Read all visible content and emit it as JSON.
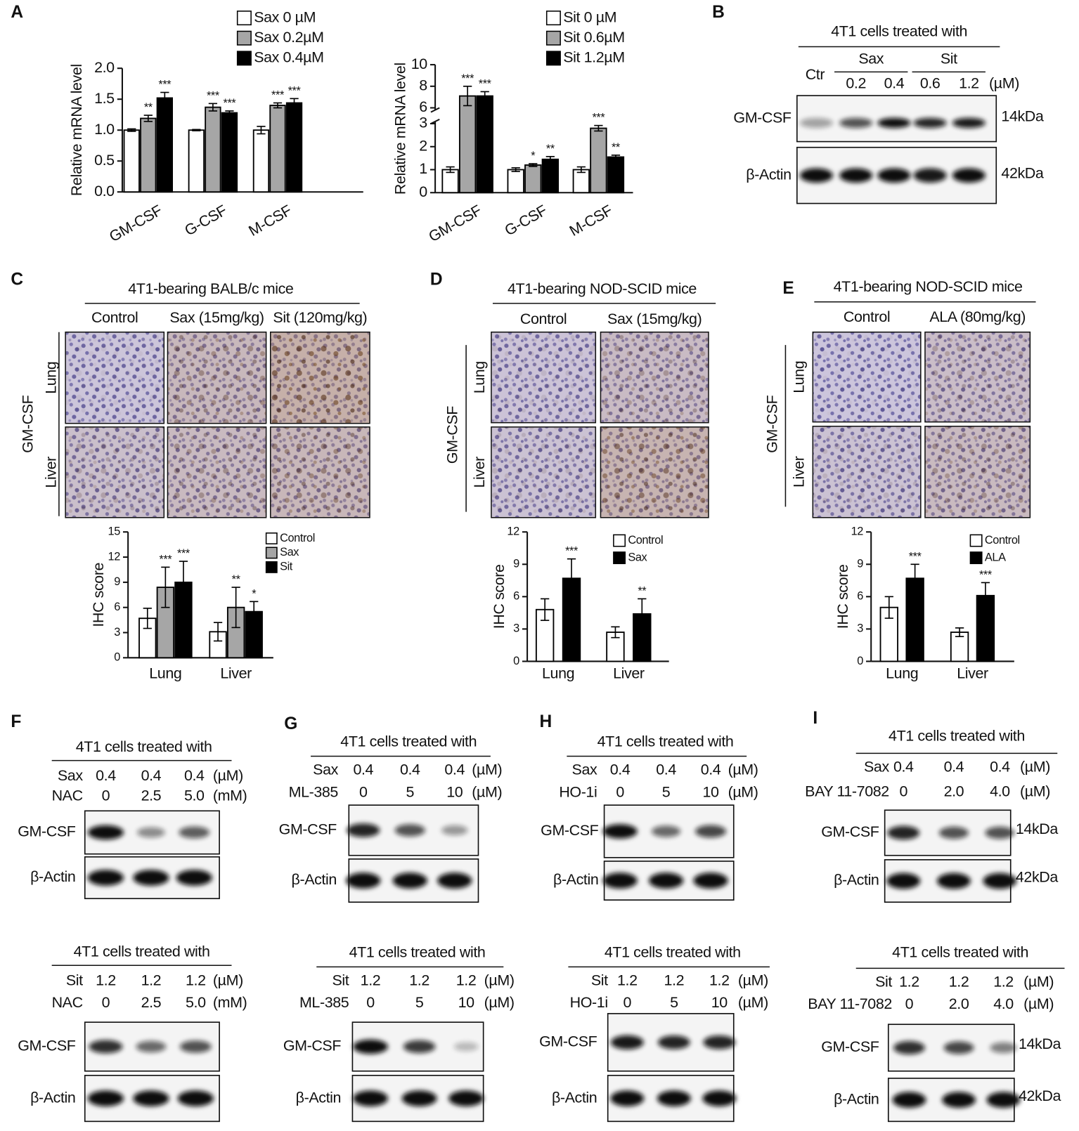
{
  "panel_labels": [
    "A",
    "B",
    "C",
    "D",
    "E",
    "F",
    "G",
    "H",
    "I"
  ],
  "chart_data": [
    {
      "type": "bar",
      "y_label": "Relative mRNA level",
      "categories": [
        "GM-CSF",
        "G-CSF",
        "M-CSF"
      ],
      "series": [
        {
          "name": "Sax 0 µM",
          "color": "#ffffff",
          "values": [
            1.0,
            1.0,
            1.0
          ],
          "errors": [
            0.02,
            0.01,
            0.06
          ]
        },
        {
          "name": "Sax 0.2µM",
          "color": "#a6a6a6",
          "values": [
            1.19,
            1.37,
            1.4
          ],
          "errors": [
            0.05,
            0.06,
            0.04
          ],
          "annotations": [
            "**",
            "***",
            "***"
          ]
        },
        {
          "name": "Sax 0.4µM",
          "color": "#000000",
          "values": [
            1.52,
            1.28,
            1.44
          ],
          "errors": [
            0.09,
            0.03,
            0.07
          ],
          "annotations": [
            "***",
            "***",
            "***"
          ]
        }
      ],
      "ylim": [
        0,
        2
      ],
      "yticks": [
        {
          "value": 0,
          "label": "0.0"
        },
        0.5,
        {
          "value": 1,
          "label": "1.0"
        },
        1.5,
        {
          "value": 2,
          "label": "2.0"
        }
      ]
    },
    {
      "type": "bar",
      "y_label": "Relative mRNA level",
      "categories": [
        "GM-CSF",
        "G-CSF",
        "M-CSF"
      ],
      "series": [
        {
          "name": "Sit 0 µM",
          "color": "#ffffff",
          "values": [
            1.0,
            1.0,
            1.0
          ],
          "errors": [
            0.12,
            0.08,
            0.12
          ]
        },
        {
          "name": "Sit 0.6µM",
          "color": "#a6a6a6",
          "values": [
            7.1,
            1.2,
            2.8
          ],
          "errors": [
            0.9,
            0.06,
            0.12
          ],
          "annotations": [
            "***",
            "*",
            "***"
          ]
        },
        {
          "name": "Sit 1.2µM",
          "color": "#000000",
          "values": [
            7.1,
            1.45,
            1.55
          ],
          "errors": [
            0.4,
            0.12,
            0.08
          ],
          "annotations": [
            "***",
            "**",
            "**"
          ]
        }
      ],
      "ylim": [
        0,
        10
      ],
      "axis_break": [
        3,
        6
      ],
      "yticks": [
        0,
        1,
        2,
        3,
        6,
        8,
        10
      ]
    },
    {
      "type": "bar",
      "y_label": "IHC score",
      "categories": [
        "Lung",
        "Liver"
      ],
      "series": [
        {
          "name": "Control",
          "color": "#ffffff",
          "values": [
            4.7,
            3.1
          ],
          "errors": [
            1.2,
            1.1
          ]
        },
        {
          "name": "Sax",
          "color": "#a6a6a6",
          "values": [
            8.4,
            6.0
          ],
          "errors": [
            2.4,
            2.4
          ],
          "annotations": [
            "***",
            "**"
          ]
        },
        {
          "name": "Sit",
          "color": "#000000",
          "values": [
            9.0,
            5.5
          ],
          "errors": [
            2.5,
            1.2
          ],
          "annotations": [
            "***",
            "*"
          ]
        }
      ],
      "ylim": [
        0,
        15
      ],
      "yticks": [
        0,
        3,
        6,
        9,
        12,
        15
      ]
    },
    {
      "type": "bar",
      "y_label": "IHC score",
      "categories": [
        "Lung",
        "Liver"
      ],
      "series": [
        {
          "name": "Control",
          "color": "#ffffff",
          "values": [
            4.8,
            2.7
          ],
          "errors": [
            1.0,
            0.5
          ]
        },
        {
          "name": "Sax",
          "color": "#000000",
          "values": [
            7.7,
            4.4
          ],
          "errors": [
            1.8,
            1.4
          ],
          "annotations": [
            "***",
            "**"
          ]
        }
      ],
      "ylim": [
        0,
        12
      ],
      "yticks": [
        0,
        3,
        6,
        9,
        12
      ]
    },
    {
      "type": "bar",
      "y_label": "IHC score",
      "categories": [
        "Lung",
        "Liver"
      ],
      "series": [
        {
          "name": "Control",
          "color": "#ffffff",
          "values": [
            5.0,
            2.7
          ],
          "errors": [
            1.0,
            0.4
          ]
        },
        {
          "name": "ALA",
          "color": "#000000",
          "values": [
            7.7,
            6.1
          ],
          "errors": [
            1.3,
            1.2
          ],
          "annotations": [
            "***",
            "***"
          ]
        }
      ],
      "ylim": [
        0,
        12
      ],
      "yticks": [
        0,
        3,
        6,
        9,
        12
      ]
    }
  ],
  "ihc": [
    {
      "title": "4T1-bearing BALB/c mice",
      "stain": "GM-CSF",
      "rows": [
        "Lung",
        "Liver"
      ],
      "columns": [
        "Control",
        "Sax (15mg/kg)",
        "Sit (120mg/kg)"
      ]
    },
    {
      "title": "4T1-bearing NOD-SCID mice",
      "stain": "GM-CSF",
      "rows": [
        "Lung",
        "Liver"
      ],
      "columns": [
        "Control",
        "Sax (15mg/kg)"
      ]
    },
    {
      "title": "4T1-bearing NOD-SCID mice",
      "stain": "GM-CSF",
      "rows": [
        "Lung",
        "Liver"
      ],
      "columns": [
        "Control",
        "ALA (80mg/kg)"
      ]
    }
  ],
  "blots": [
    {
      "header": "4T1 cells treated with",
      "control": "Ctr",
      "groups": [
        {
          "label": "Sax",
          "doses": [
            "0.2",
            "0.4"
          ]
        },
        {
          "label": "Sit",
          "doses": [
            "0.6",
            "1.2"
          ]
        }
      ],
      "unit": "(µM)",
      "rows": [
        {
          "label": "GM-CSF",
          "size": "14kDa"
        },
        {
          "label": "β-Actin",
          "size": "42kDa"
        }
      ]
    },
    {
      "header": "4T1 cells treated with",
      "conditions": [
        {
          "label": "Sax",
          "values": [
            "0.4",
            "0.4",
            "0.4"
          ],
          "unit": "(µM)"
        },
        {
          "label": "NAC",
          "values": [
            "0",
            "2.5",
            "5.0"
          ],
          "unit": "(mM)"
        }
      ],
      "rows": [
        {
          "label": "GM-CSF"
        },
        {
          "label": "β-Actin"
        }
      ]
    },
    {
      "header": "4T1 cells treated with",
      "conditions": [
        {
          "label": "Sit",
          "values": [
            "1.2",
            "1.2",
            "1.2"
          ],
          "unit": "(µM)"
        },
        {
          "label": "NAC",
          "values": [
            "0",
            "2.5",
            "5.0"
          ],
          "unit": "(mM)"
        }
      ],
      "rows": [
        {
          "label": "GM-CSF"
        },
        {
          "label": "β-Actin"
        }
      ]
    },
    {
      "header": "4T1 cells treated with",
      "conditions": [
        {
          "label": "Sax",
          "values": [
            "0.4",
            "0.4",
            "0.4"
          ],
          "unit": "(µM)"
        },
        {
          "label": "ML-385",
          "values": [
            "0",
            "5",
            "10"
          ],
          "unit": "(µM)"
        }
      ],
      "rows": [
        {
          "label": "GM-CSF"
        },
        {
          "label": "β-Actin"
        }
      ]
    },
    {
      "header": "4T1 cells treated with",
      "conditions": [
        {
          "label": "Sit",
          "values": [
            "1.2",
            "1.2",
            "1.2"
          ],
          "unit": "(µM)"
        },
        {
          "label": "ML-385",
          "values": [
            "0",
            "5",
            "10"
          ],
          "unit": "(µM)"
        }
      ],
      "rows": [
        {
          "label": "GM-CSF"
        },
        {
          "label": "β-Actin"
        }
      ]
    },
    {
      "header": "4T1 cells treated with",
      "conditions": [
        {
          "label": "Sax",
          "values": [
            "0.4",
            "0.4",
            "0.4"
          ],
          "unit": "(µM)"
        },
        {
          "label": "HO-1i",
          "values": [
            "0",
            "5",
            "10"
          ],
          "unit": "(µM)"
        }
      ],
      "rows": [
        {
          "label": "GM-CSF"
        },
        {
          "label": "β-Actin"
        }
      ]
    },
    {
      "header": "4T1 cells treated with",
      "conditions": [
        {
          "label": "Sit",
          "values": [
            "1.2",
            "1.2",
            "1.2"
          ],
          "unit": "(µM)"
        },
        {
          "label": "HO-1i",
          "values": [
            "0",
            "5",
            "10"
          ],
          "unit": "(µM)"
        }
      ],
      "rows": [
        {
          "label": "GM-CSF"
        },
        {
          "label": "β-Actin"
        }
      ]
    },
    {
      "header": "4T1 cells treated with",
      "conditions": [
        {
          "label": "Sax",
          "values": [
            "0.4",
            "0.4",
            "0.4"
          ],
          "unit": "(µM)"
        },
        {
          "label": "BAY 11-7082",
          "values": [
            "0",
            "2.0",
            "4.0"
          ],
          "unit": "(µM)"
        }
      ],
      "rows": [
        {
          "label": "GM-CSF",
          "size": "14kDa"
        },
        {
          "label": "β-Actin",
          "size": "42kDa"
        }
      ]
    },
    {
      "header": "4T1 cells treated with",
      "conditions": [
        {
          "label": "Sit",
          "values": [
            "1.2",
            "1.2",
            "1.2"
          ],
          "unit": "(µM)"
        },
        {
          "label": "BAY 11-7082",
          "values": [
            "0",
            "2.0",
            "4.0"
          ],
          "unit": "(µM)"
        }
      ],
      "rows": [
        {
          "label": "GM-CSF",
          "size": "14kDa"
        },
        {
          "label": "β-Actin",
          "size": "42kDa"
        }
      ]
    }
  ]
}
